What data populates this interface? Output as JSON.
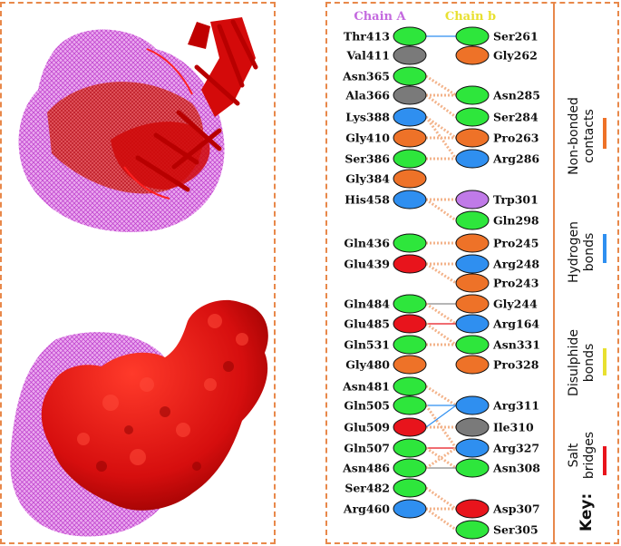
{
  "chain_a_label": "Chain A",
  "chain_b_label": "Chain b",
  "colors": {
    "green": "#2ee63c",
    "grey": "#7a7a7a",
    "blue": "#2f8ff0",
    "orange": "#ee7228",
    "red": "#e8141c",
    "purple": "#c07ae8",
    "chainA": "#c46adf",
    "chainB": "#e8e030",
    "border": "#e8884a"
  },
  "chain_a": [
    {
      "name": "Thr413",
      "color": "green"
    },
    {
      "name": "Val411",
      "color": "grey"
    },
    {
      "name": "Asn365",
      "color": "green"
    },
    {
      "name": "Ala366",
      "color": "grey"
    },
    {
      "name": "Lys388",
      "color": "blue"
    },
    {
      "name": "Gly410",
      "color": "orange"
    },
    {
      "name": "Ser386",
      "color": "green"
    },
    {
      "name": "Gly384",
      "color": "orange"
    },
    {
      "name": "His458",
      "color": "blue"
    },
    {
      "name": "Gln436",
      "color": "green"
    },
    {
      "name": "Glu439",
      "color": "red"
    },
    {
      "name": "Gln484",
      "color": "green"
    },
    {
      "name": "Glu485",
      "color": "red"
    },
    {
      "name": "Gln531",
      "color": "green"
    },
    {
      "name": "Gly480",
      "color": "orange"
    },
    {
      "name": "Asn481",
      "color": "green"
    },
    {
      "name": "Gln505",
      "color": "green"
    },
    {
      "name": "Glu509",
      "color": "red"
    },
    {
      "name": "Gln507",
      "color": "green"
    },
    {
      "name": "Asn486",
      "color": "green"
    },
    {
      "name": "Ser482",
      "color": "green"
    },
    {
      "name": "Arg460",
      "color": "blue"
    }
  ],
  "chain_b": [
    {
      "name": "Ser261",
      "color": "green"
    },
    {
      "name": "Gly262",
      "color": "orange"
    },
    {
      "name": "Asn285",
      "color": "green"
    },
    {
      "name": "Ser284",
      "color": "green"
    },
    {
      "name": "Pro263",
      "color": "orange"
    },
    {
      "name": "Arg286",
      "color": "blue"
    },
    {
      "name": "Trp301",
      "color": "purple"
    },
    {
      "name": "Gln298",
      "color": "green"
    },
    {
      "name": "Pro245",
      "color": "orange"
    },
    {
      "name": "Arg248",
      "color": "blue"
    },
    {
      "name": "Pro243",
      "color": "orange"
    },
    {
      "name": "Gly244",
      "color": "orange"
    },
    {
      "name": "Arg164",
      "color": "blue"
    },
    {
      "name": "Asn331",
      "color": "green"
    },
    {
      "name": "Pro328",
      "color": "orange"
    },
    {
      "name": "Arg311",
      "color": "blue"
    },
    {
      "name": "Ile310",
      "color": "grey"
    },
    {
      "name": "Arg327",
      "color": "blue"
    },
    {
      "name": "Asn308",
      "color": "green"
    },
    {
      "name": "Asp307",
      "color": "red"
    },
    {
      "name": "Ser305",
      "color": "green"
    }
  ],
  "key": {
    "title": "Key:",
    "items": [
      {
        "label": "Salt bridges",
        "color": "#e8141c"
      },
      {
        "label": "Disulphide bonds",
        "color": "#e8e030"
      },
      {
        "label": "Hydrogen bonds",
        "color": "#2f8ff0"
      },
      {
        "label": "Non-bonded contacts",
        "color": "#ee7228"
      }
    ]
  }
}
